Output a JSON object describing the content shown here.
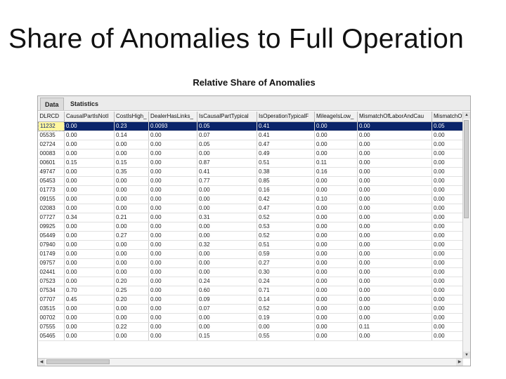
{
  "slide": {
    "title": "Share of Anomalies to Full Operation"
  },
  "window": {
    "caption": "Relative Share of Anomalies",
    "tabs": [
      {
        "label": "Data",
        "active": true
      },
      {
        "label": "Statistics",
        "active": false
      }
    ]
  },
  "table": {
    "columns": [
      "DLRCD",
      "CausalPartIsNotI",
      "CostIsHigh_",
      "DealerHasLinks_",
      "IsCausalPartTypical",
      "IsOperationTypicalF",
      "MileageIsLow_",
      "MismatchOfLaborAndCau",
      "MismatchOf_"
    ],
    "selected_row": 0,
    "rows": [
      [
        "11232",
        "0.00",
        "0.23",
        "0.0093",
        "0.05",
        "0.41",
        "0.00",
        "0.00",
        "0.05"
      ],
      [
        "05535",
        "0.00",
        "0.14",
        "0.00",
        "0.07",
        "0.41",
        "0.00",
        "0.00",
        "0.00"
      ],
      [
        "02724",
        "0.00",
        "0.00",
        "0.00",
        "0.05",
        "0.47",
        "0.00",
        "0.00",
        "0.00"
      ],
      [
        "00083",
        "0.00",
        "0.00",
        "0.00",
        "0.00",
        "0.49",
        "0.00",
        "0.00",
        "0.00"
      ],
      [
        "00601",
        "0.15",
        "0.15",
        "0.00",
        "0.87",
        "0.51",
        "0.11",
        "0.00",
        "0.00"
      ],
      [
        "49747",
        "0.00",
        "0.35",
        "0.00",
        "0.41",
        "0.38",
        "0.16",
        "0.00",
        "0.00"
      ],
      [
        "05453",
        "0.00",
        "0.00",
        "0.00",
        "0.77",
        "0.85",
        "0.00",
        "0.00",
        "0.00"
      ],
      [
        "01773",
        "0.00",
        "0.00",
        "0.00",
        "0.00",
        "0.16",
        "0.00",
        "0.00",
        "0.00"
      ],
      [
        "09155",
        "0.00",
        "0.00",
        "0.00",
        "0.00",
        "0.42",
        "0.10",
        "0.00",
        "0.00"
      ],
      [
        "02083",
        "0.00",
        "0.00",
        "0.00",
        "0.00",
        "0.47",
        "0.00",
        "0.00",
        "0.00"
      ],
      [
        "07727",
        "0.34",
        "0.21",
        "0.00",
        "0.31",
        "0.52",
        "0.00",
        "0.00",
        "0.00"
      ],
      [
        "09925",
        "0.00",
        "0.00",
        "0.00",
        "0.00",
        "0.53",
        "0.00",
        "0.00",
        "0.00"
      ],
      [
        "05449",
        "0.00",
        "0.27",
        "0.00",
        "0.00",
        "0.52",
        "0.00",
        "0.00",
        "0.00"
      ],
      [
        "07940",
        "0.00",
        "0.00",
        "0.00",
        "0.32",
        "0.51",
        "0.00",
        "0.00",
        "0.00"
      ],
      [
        "01749",
        "0.00",
        "0.00",
        "0.00",
        "0.00",
        "0.59",
        "0.00",
        "0.00",
        "0.00"
      ],
      [
        "09757",
        "0.00",
        "0.00",
        "0.00",
        "0.00",
        "0.27",
        "0.00",
        "0.00",
        "0.00"
      ],
      [
        "02441",
        "0.00",
        "0.00",
        "0.00",
        "0.00",
        "0.30",
        "0.00",
        "0.00",
        "0.00"
      ],
      [
        "07523",
        "0.00",
        "0.20",
        "0.00",
        "0.24",
        "0.24",
        "0.00",
        "0.00",
        "0.00"
      ],
      [
        "07534",
        "0.70",
        "0.25",
        "0.00",
        "0.60",
        "0.71",
        "0.00",
        "0.00",
        "0.00"
      ],
      [
        "07707",
        "0.45",
        "0.20",
        "0.00",
        "0.09",
        "0.14",
        "0.00",
        "0.00",
        "0.00"
      ],
      [
        "03515",
        "0.00",
        "0.00",
        "0.00",
        "0.07",
        "0.52",
        "0.00",
        "0.00",
        "0.00"
      ],
      [
        "00702",
        "0.00",
        "0.00",
        "0.00",
        "0.00",
        "0.19",
        "0.00",
        "0.00",
        "0.00"
      ],
      [
        "07555",
        "0.00",
        "0.22",
        "0.00",
        "0.00",
        "0.00",
        "0.00",
        "0.11",
        "0.00"
      ],
      [
        "05465",
        "0.00",
        "0.00",
        "0.00",
        "0.15",
        "0.55",
        "0.00",
        "0.00",
        "0.00"
      ]
    ]
  }
}
